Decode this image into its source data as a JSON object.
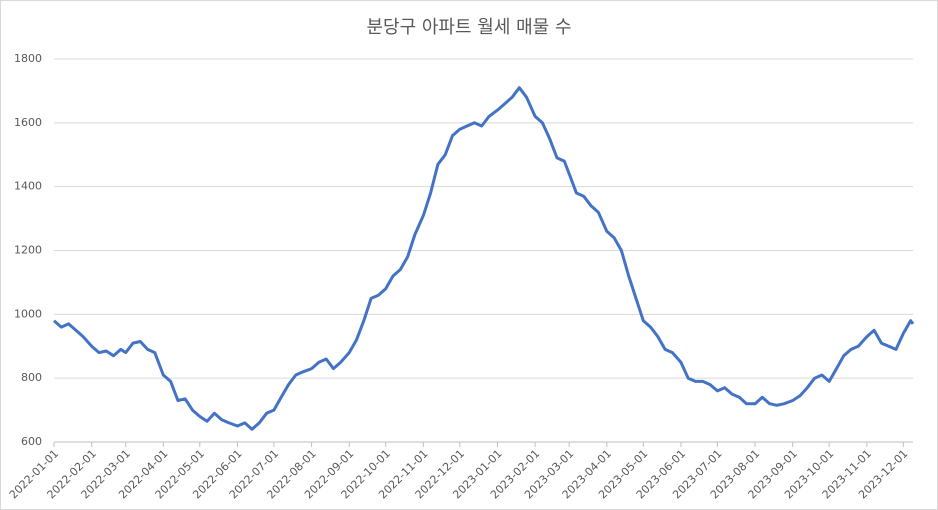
{
  "chart_data": {
    "type": "line",
    "title": "분당구 아파트 월세 매물 수",
    "x": [
      "2022-01-01",
      "2022-01-07",
      "2022-01-13",
      "2022-01-19",
      "2022-01-25",
      "2022-02-01",
      "2022-02-07",
      "2022-02-13",
      "2022-02-19",
      "2022-02-25",
      "2022-03-01",
      "2022-03-07",
      "2022-03-13",
      "2022-03-19",
      "2022-03-25",
      "2022-04-01",
      "2022-04-07",
      "2022-04-13",
      "2022-04-19",
      "2022-04-25",
      "2022-05-01",
      "2022-05-07",
      "2022-05-13",
      "2022-05-19",
      "2022-05-25",
      "2022-06-01",
      "2022-06-07",
      "2022-06-13",
      "2022-06-19",
      "2022-06-25",
      "2022-07-01",
      "2022-07-07",
      "2022-07-13",
      "2022-07-19",
      "2022-07-25",
      "2022-08-01",
      "2022-08-07",
      "2022-08-13",
      "2022-08-19",
      "2022-08-25",
      "2022-09-01",
      "2022-09-07",
      "2022-09-13",
      "2022-09-19",
      "2022-09-25",
      "2022-10-01",
      "2022-10-07",
      "2022-10-13",
      "2022-10-19",
      "2022-10-25",
      "2022-11-01",
      "2022-11-07",
      "2022-11-13",
      "2022-11-19",
      "2022-11-25",
      "2022-12-01",
      "2022-12-07",
      "2022-12-13",
      "2022-12-19",
      "2022-12-25",
      "2023-01-01",
      "2023-01-07",
      "2023-01-13",
      "2023-01-19",
      "2023-01-25",
      "2023-02-01",
      "2023-02-07",
      "2023-02-13",
      "2023-02-19",
      "2023-02-25",
      "2023-03-01",
      "2023-03-07",
      "2023-03-13",
      "2023-03-19",
      "2023-03-25",
      "2023-04-01",
      "2023-04-07",
      "2023-04-13",
      "2023-04-19",
      "2023-04-25",
      "2023-05-01",
      "2023-05-07",
      "2023-05-13",
      "2023-05-19",
      "2023-05-25",
      "2023-06-01",
      "2023-06-07",
      "2023-06-13",
      "2023-06-19",
      "2023-06-25",
      "2023-07-01",
      "2023-07-07",
      "2023-07-13",
      "2023-07-19",
      "2023-07-25",
      "2023-08-01",
      "2023-08-07",
      "2023-08-13",
      "2023-08-19",
      "2023-08-25",
      "2023-09-01",
      "2023-09-07",
      "2023-09-13",
      "2023-09-19",
      "2023-09-25",
      "2023-10-01",
      "2023-10-07",
      "2023-10-13",
      "2023-10-19",
      "2023-10-25",
      "2023-11-01",
      "2023-11-07",
      "2023-11-13",
      "2023-11-19",
      "2023-11-25",
      "2023-12-01",
      "2023-12-07",
      "2023-12-09"
    ],
    "series": [
      {
        "color": "#4472c4",
        "values": [
          980,
          960,
          970,
          950,
          930,
          900,
          880,
          885,
          870,
          890,
          880,
          910,
          915,
          890,
          880,
          810,
          790,
          730,
          735,
          700,
          680,
          665,
          690,
          670,
          660,
          650,
          660,
          640,
          660,
          690,
          700,
          740,
          780,
          810,
          820,
          830,
          850,
          860,
          830,
          850,
          880,
          920,
          980,
          1050,
          1060,
          1080,
          1120,
          1140,
          1180,
          1250,
          1310,
          1380,
          1470,
          1500,
          1560,
          1580,
          1590,
          1600,
          1590,
          1620,
          1640,
          1660,
          1680,
          1710,
          1680,
          1620,
          1600,
          1550,
          1490,
          1480,
          1440,
          1380,
          1370,
          1340,
          1320,
          1260,
          1240,
          1200,
          1120,
          1050,
          980,
          960,
          930,
          890,
          880,
          850,
          800,
          790,
          790,
          780,
          760,
          770,
          750,
          740,
          720,
          720,
          740,
          720,
          715,
          720,
          730,
          745,
          770,
          800,
          810,
          790,
          830,
          870,
          890,
          900,
          930,
          950,
          910,
          900,
          890,
          940,
          980,
          970
        ]
      }
    ],
    "xlim": [
      "2022-01-01",
      "2023-12-09"
    ],
    "xticks": [
      "2022-01-01",
      "2022-02-01",
      "2022-03-01",
      "2022-04-01",
      "2022-05-01",
      "2022-06-01",
      "2022-07-01",
      "2022-08-01",
      "2022-09-01",
      "2022-10-01",
      "2022-11-01",
      "2022-12-01",
      "2023-01-01",
      "2023-02-01",
      "2023-03-01",
      "2023-04-01",
      "2023-05-01",
      "2023-06-01",
      "2023-07-01",
      "2023-08-01",
      "2023-09-01",
      "2023-10-01",
      "2023-11-01",
      "2023-12-01"
    ],
    "ylim": [
      600,
      1800
    ],
    "yticks": [
      600,
      800,
      1000,
      1200,
      1400,
      1600,
      1800
    ],
    "grid": true
  }
}
